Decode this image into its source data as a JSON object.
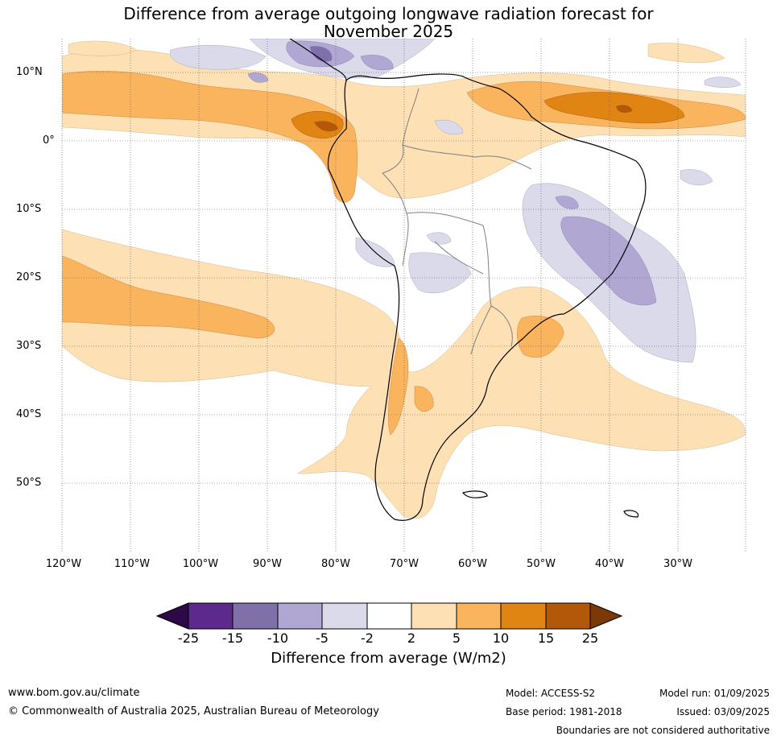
{
  "title": {
    "line1": "Difference from average outgoing longwave radiation forecast for",
    "line2": "November 2025"
  },
  "map": {
    "lat_labels": [
      "10°N",
      "0°",
      "10°S",
      "20°S",
      "30°S",
      "40°S",
      "50°S"
    ],
    "lon_labels": [
      "120°W",
      "110°W",
      "100°W",
      "90°W",
      "80°W",
      "70°W",
      "60°W",
      "50°W",
      "40°W",
      "30°W"
    ],
    "gridlines": "dotted"
  },
  "colorbar": {
    "title": "Difference from average (W/m2)",
    "ticks": [
      "-25",
      "-15",
      "-10",
      "-5",
      "-2",
      "2",
      "5",
      "10",
      "15",
      "25"
    ],
    "colors": {
      "below": "#2d0a45",
      "c1": "#5b2a8c",
      "c2": "#8070aa",
      "c3": "#b0a8d2",
      "c4": "#dadaea",
      "c5": "#ffffff",
      "c6": "#fde0b4",
      "c7": "#fbb45e",
      "c8": "#e08414",
      "c9": "#b35808",
      "above": "#7a3906"
    }
  },
  "footer": {
    "website": "www.bom.gov.au/climate",
    "copyright": "© Commonwealth of Australia 2025, Australian Bureau of Meteorology",
    "model": "Model: ACCESS-S2",
    "base_period": "Base period: 1981-2018",
    "model_run": "Model run: 01/09/2025",
    "issued": "Issued: 03/09/2025",
    "disclaimer": "Boundaries are not considered authoritative"
  }
}
